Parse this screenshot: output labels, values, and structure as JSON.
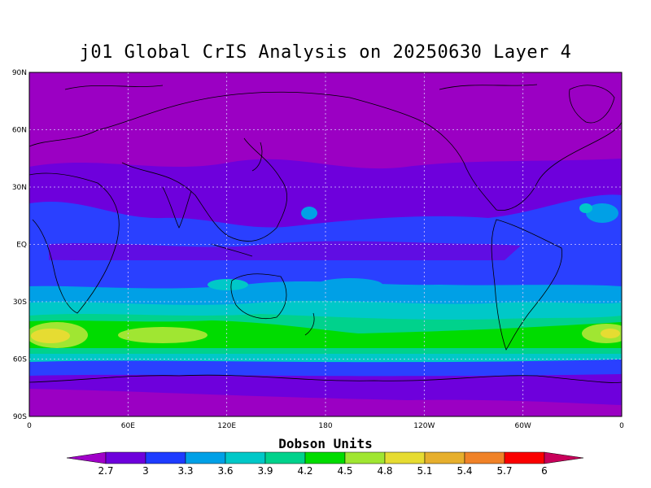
{
  "title": "j01 Global CrIS Analysis on 20250630 Layer 4",
  "lat_ticks": [
    "90N",
    "60N",
    "30N",
    "EQ",
    "30S",
    "60S",
    "90S"
  ],
  "lon_ticks": [
    "0",
    "60E",
    "120E",
    "180",
    "120W",
    "60W",
    "0"
  ],
  "colorbar": {
    "title": "Dobson Units",
    "labels": [
      "2.7",
      "3",
      "3.3",
      "3.6",
      "3.9",
      "4.2",
      "4.5",
      "4.8",
      "5.1",
      "5.4",
      "5.7",
      "6"
    ],
    "colors": [
      "#a000c8",
      "#6e00dc",
      "#1e3cff",
      "#00a0e6",
      "#00c8c8",
      "#00d28c",
      "#00dc00",
      "#a0e632",
      "#e6dc32",
      "#e6af2d",
      "#f08228",
      "#fa0000",
      "#c8005a"
    ]
  },
  "map_colors": {
    "ocean_band_purple": "#9b00c3",
    "violet": "#6e00dc",
    "blue": "#2a40ff",
    "cyan": "#00a0e6",
    "teal": "#00c8c8",
    "green": "#00d28c",
    "bright_green": "#00dc00",
    "lime": "#a0e632",
    "yellow": "#e6dc32"
  }
}
